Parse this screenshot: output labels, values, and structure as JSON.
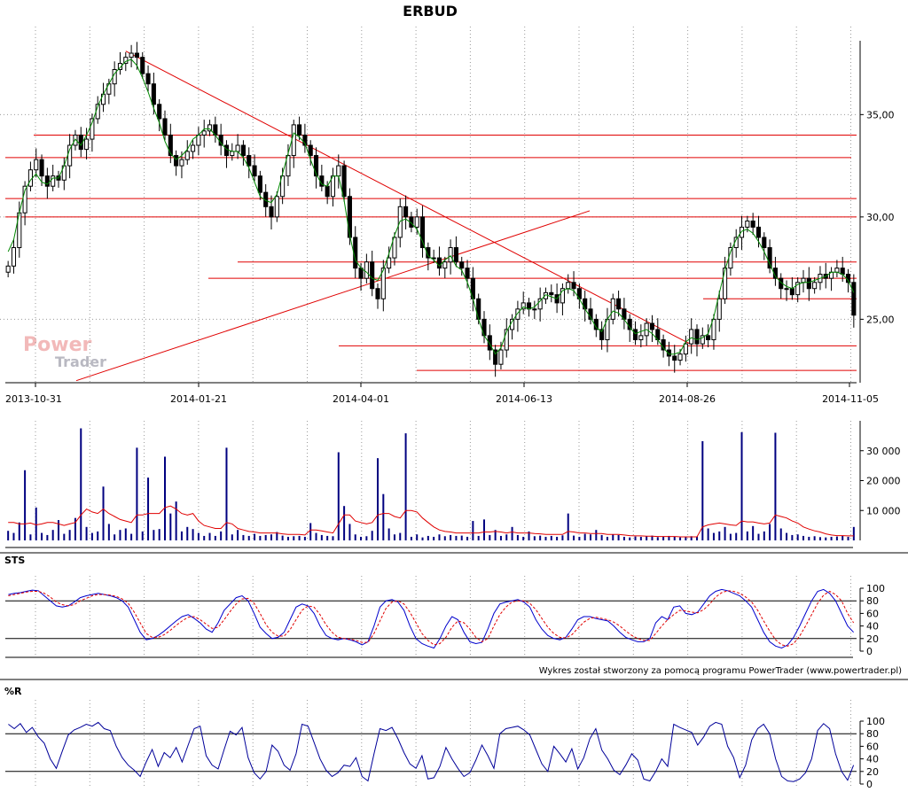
{
  "chart_data": [
    {
      "type": "candlestick",
      "title": "ERBUD",
      "x_tick_labels": [
        "2013-10-31",
        "2014-01-21",
        "2014-04-01",
        "2014-06-13",
        "2014-08-26",
        "2014-11-05"
      ],
      "y_tick_labels": [
        "25,00",
        "30,00",
        "35,00"
      ],
      "y_ticks": [
        25,
        30,
        35
      ],
      "ylim": [
        21.9,
        39.3
      ],
      "grid": true,
      "close_series": [
        27.6,
        28.5,
        30.2,
        31.5,
        32.3,
        32.8,
        32.0,
        31.5,
        32.0,
        31.8,
        32.5,
        33.5,
        34.0,
        33.3,
        33.8,
        34.8,
        35.5,
        36.0,
        36.5,
        37.2,
        37.5,
        37.8,
        38.0,
        37.8,
        37.0,
        36.5,
        35.5,
        34.8,
        34.0,
        33.0,
        32.5,
        32.8,
        33.2,
        33.5,
        34.0,
        34.2,
        34.5,
        34.0,
        33.5,
        33.0,
        33.2,
        33.5,
        33.0,
        32.5,
        32.0,
        31.2,
        30.5,
        30.0,
        31.0,
        32.0,
        33.0,
        34.5,
        34.0,
        33.5,
        33.0,
        32.0,
        31.5,
        31.0,
        32.0,
        32.5,
        31.0,
        29.0,
        27.5,
        27.0,
        27.8,
        26.5,
        26.0,
        27.5,
        28.0,
        29.0,
        30.5,
        30.0,
        29.5,
        30.0,
        28.5,
        28.0,
        28.0,
        27.5,
        27.8,
        28.5,
        27.8,
        27.5,
        27.0,
        26.0,
        25.0,
        24.2,
        23.5,
        22.8,
        23.5,
        24.5,
        25.0,
        25.5,
        25.8,
        25.5,
        25.5,
        26.0,
        26.3,
        26.2,
        25.8,
        26.5,
        26.8,
        26.5,
        26.0,
        25.5,
        25.0,
        24.5,
        24.0,
        25.0,
        26.0,
        25.5,
        25.0,
        24.5,
        24.0,
        24.2,
        24.8,
        24.5,
        24.0,
        23.5,
        23.2,
        23.0,
        23.3,
        23.8,
        24.5,
        23.8,
        24.2,
        24.0,
        25.0,
        26.0,
        27.5,
        28.5,
        29.0,
        29.5,
        29.8,
        29.5,
        29.0,
        28.5,
        27.5,
        27.0,
        26.5,
        26.5,
        26.2,
        26.8,
        27.0,
        26.5,
        26.8,
        27.2,
        27.0,
        27.3,
        27.5,
        27.2,
        26.8,
        25.2
      ],
      "sma_series": [
        28.3,
        28.9,
        30.2,
        31.3,
        31.8,
        32.1,
        31.7,
        31.6,
        31.9,
        31.9,
        32.5,
        33.3,
        33.8,
        33.5,
        34.0,
        34.6,
        35.4,
        36.0,
        36.5,
        37.0,
        37.3,
        37.6,
        37.7,
        37.4,
        36.8,
        36.1,
        35.3,
        34.6,
        33.7,
        33.1,
        32.8,
        33.0,
        33.3,
        33.8,
        34.0,
        34.3,
        34.3,
        34.0,
        33.6,
        33.3,
        33.2,
        33.2,
        32.9,
        32.4,
        31.7,
        31.0,
        30.8,
        30.7,
        31.1,
        32.1,
        33.1,
        34.1,
        33.9,
        33.6,
        32.8,
        32.1,
        31.6,
        31.5,
        32.0,
        32.0,
        30.8,
        29.1,
        27.9,
        27.5,
        27.3,
        27.0,
        26.9,
        27.4,
        28.2,
        29.1,
        29.8,
        29.9,
        29.7,
        29.4,
        28.8,
        28.1,
        27.9,
        27.6,
        27.9,
        28.1,
        27.6,
        27.4,
        26.8,
        26.0,
        25.0,
        24.2,
        23.8,
        23.3,
        23.6,
        24.4,
        24.9,
        25.3,
        25.6,
        25.5,
        25.6,
        25.9,
        26.2,
        26.1,
        26.0,
        26.4,
        26.5,
        26.4,
        26.0,
        25.5,
        25.1,
        24.6,
        24.4,
        25.0,
        25.4,
        25.3,
        25.0,
        24.6,
        24.3,
        24.4,
        24.5,
        24.3,
        24.0,
        23.6,
        23.3,
        23.3,
        23.4,
        23.9,
        24.1,
        24.0,
        24.1,
        24.3,
        25.1,
        26.3,
        27.4,
        28.3,
        28.9,
        29.3,
        29.4,
        29.2,
        28.8,
        28.3,
        27.7,
        27.1,
        26.8,
        26.6,
        26.5,
        26.7,
        26.8,
        26.8,
        26.9,
        27.0,
        27.1,
        27.3,
        27.3,
        27.2,
        26.9,
        26.3
      ],
      "annotations": "red support and resistance lines, a falling trend line and a rising trend line"
    },
    {
      "type": "bar",
      "y_tick_labels": [
        "10 000",
        "20 000",
        "30 000"
      ],
      "y_ticks": [
        10000,
        20000,
        30000
      ],
      "ylim": [
        0,
        40000
      ],
      "series": [
        {
          "values": [
            3200,
            2500,
            6000,
            23500,
            2000,
            11000,
            2500,
            1800,
            3500,
            6800,
            2200,
            3500,
            7500,
            37500,
            4500,
            2500,
            3000,
            18000,
            5500,
            2000,
            3500,
            4000,
            2200,
            31000,
            3000,
            21000,
            3500,
            3800,
            28000,
            9000,
            13000,
            3000,
            4500,
            3800,
            2500,
            1500,
            2500,
            1500,
            3000,
            31000,
            2000,
            3500,
            1800,
            1500,
            2200,
            1500,
            1800,
            2000,
            2800,
            1600,
            1200,
            1400,
            1500,
            1200,
            5800,
            2500,
            1800,
            1500,
            1400,
            29500,
            11500,
            5500,
            2000,
            1200,
            1400,
            3200,
            27500,
            15500,
            4000,
            2000,
            2500,
            35800,
            1200,
            2000,
            1000,
            1500,
            1200,
            2000,
            1400,
            1800,
            1500,
            1600,
            1200,
            6500,
            1500,
            7000,
            1800,
            3500,
            1500,
            2000,
            4500,
            1800,
            1200,
            3000,
            1400,
            1600,
            1200,
            1500,
            1200,
            1700,
            9000,
            1600,
            1200,
            2200,
            2000,
            3500,
            1800,
            1200,
            2000,
            1800,
            1200,
            1000,
            1300,
            1200,
            1400,
            1600,
            1100,
            1200,
            1500,
            1300,
            1000,
            1200,
            1400,
            1300,
            33200,
            4000,
            2500,
            3000,
            4500,
            2200,
            2500,
            36200,
            3000,
            4800,
            2200,
            3000,
            5500,
            36000,
            4000,
            2500,
            1800,
            2000,
            1500,
            1200,
            1400,
            1100,
            1000,
            1200,
            1300,
            1500,
            1200,
            4500
          ],
          "color": "#000080"
        },
        {
          "values": [
            6000,
            6000,
            5500,
            5500,
            5800,
            5200,
            5500,
            6000,
            6000,
            5500,
            5000,
            5500,
            6000,
            8500,
            10500,
            9500,
            9000,
            10500,
            9000,
            8000,
            7000,
            6500,
            6000,
            8500,
            8500,
            9000,
            9000,
            9000,
            11000,
            11500,
            10500,
            9000,
            8500,
            9000,
            6500,
            5000,
            4500,
            4000,
            4000,
            6000,
            5500,
            4000,
            3500,
            3000,
            2800,
            2500,
            2500,
            2500,
            2500,
            2200,
            2000,
            2000,
            2000,
            1800,
            3500,
            3500,
            3200,
            2800,
            2500,
            5500,
            8500,
            8500,
            6500,
            6000,
            5500,
            6000,
            8500,
            9000,
            9000,
            8000,
            7500,
            10000,
            10000,
            9500,
            7500,
            6000,
            4500,
            3500,
            3000,
            2800,
            2500,
            2500,
            2500,
            2500,
            2500,
            2800,
            2800,
            3000,
            2800,
            2500,
            2800,
            2500,
            2500,
            2500,
            2300,
            2200,
            2000,
            2000,
            2000,
            2000,
            3000,
            2800,
            2500,
            2500,
            2300,
            2300,
            2300,
            2000,
            2000,
            2000,
            1800,
            1600,
            1500,
            1500,
            1400,
            1400,
            1300,
            1300,
            1300,
            1300,
            1200,
            1200,
            1200,
            1200,
            4500,
            5200,
            5500,
            5800,
            5500,
            5200,
            5000,
            6500,
            6200,
            6200,
            5800,
            5500,
            5800,
            8500,
            8000,
            7500,
            6500,
            5800,
            4500,
            3800,
            3200,
            2800,
            2200,
            1800,
            1600,
            1600,
            1500,
            1500
          ],
          "color": "#e00000"
        }
      ]
    },
    {
      "type": "line",
      "title": "STS",
      "y_tick_labels": [
        "0",
        "20",
        "40",
        "60",
        "80",
        "100"
      ],
      "y_ticks": [
        0,
        20,
        40,
        60,
        80,
        100
      ],
      "ylim": [
        0,
        100
      ],
      "levels": [
        20,
        80
      ],
      "series": [
        {
          "values": [
            90,
            92,
            93,
            95,
            97,
            96,
            88,
            80,
            72,
            70,
            72,
            78,
            85,
            88,
            90,
            92,
            90,
            88,
            85,
            80,
            70,
            50,
            30,
            18,
            20,
            25,
            32,
            40,
            48,
            55,
            58,
            52,
            45,
            35,
            30,
            45,
            65,
            75,
            85,
            88,
            80,
            60,
            38,
            28,
            20,
            22,
            30,
            50,
            70,
            75,
            72,
            60,
            40,
            25,
            20,
            18,
            20,
            18,
            15,
            10,
            15,
            40,
            70,
            80,
            82,
            78,
            65,
            40,
            20,
            12,
            8,
            5,
            20,
            40,
            55,
            50,
            30,
            15,
            12,
            14,
            35,
            60,
            75,
            78,
            80,
            82,
            78,
            70,
            50,
            35,
            25,
            20,
            18,
            22,
            35,
            50,
            55,
            55,
            52,
            50,
            48,
            40,
            30,
            22,
            18,
            15,
            15,
            20,
            45,
            55,
            50,
            70,
            72,
            60,
            58,
            62,
            75,
            88,
            95,
            98,
            96,
            92,
            88,
            80,
            70,
            50,
            30,
            15,
            8,
            5,
            10,
            22,
            40,
            60,
            80,
            95,
            98,
            92,
            80,
            60,
            40,
            30
          ],
          "color": "#0000cc"
        },
        {
          "values": [
            88,
            90,
            92,
            94,
            95,
            95,
            92,
            86,
            78,
            74,
            72,
            74,
            80,
            84,
            88,
            90,
            90,
            89,
            87,
            83,
            76,
            62,
            45,
            28,
            22,
            22,
            26,
            33,
            41,
            48,
            54,
            55,
            50,
            43,
            36,
            38,
            50,
            63,
            75,
            83,
            84,
            76,
            60,
            42,
            30,
            24,
            24,
            34,
            50,
            65,
            72,
            70,
            58,
            42,
            30,
            22,
            20,
            19,
            17,
            14,
            14,
            28,
            48,
            68,
            78,
            80,
            75,
            62,
            45,
            28,
            17,
            10,
            12,
            22,
            38,
            48,
            45,
            35,
            22,
            15,
            20,
            40,
            58,
            70,
            78,
            80,
            80,
            76,
            66,
            52,
            38,
            28,
            22,
            21,
            26,
            36,
            46,
            52,
            54,
            52,
            50,
            46,
            40,
            32,
            25,
            20,
            17,
            17,
            28,
            40,
            50,
            58,
            65,
            64,
            62,
            61,
            66,
            75,
            86,
            93,
            96,
            95,
            92,
            86,
            78,
            65,
            48,
            32,
            18,
            10,
            8,
            12,
            24,
            40,
            58,
            76,
            89,
            95,
            90,
            80,
            60,
            45
          ],
          "color": "#e00000"
        }
      ]
    },
    {
      "type": "line",
      "title": "%R",
      "y_tick_labels": [
        "0",
        "20",
        "40",
        "60",
        "80",
        "100"
      ],
      "y_ticks": [
        0,
        20,
        40,
        60,
        80,
        100
      ],
      "ylim": [
        0,
        100
      ],
      "levels": [
        20,
        80
      ],
      "series": [
        {
          "values": [
            95,
            88,
            96,
            82,
            90,
            75,
            65,
            40,
            25,
            52,
            78,
            86,
            90,
            95,
            92,
            98,
            88,
            85,
            60,
            42,
            30,
            22,
            12,
            35,
            55,
            28,
            50,
            42,
            58,
            35,
            62,
            88,
            92,
            45,
            30,
            24,
            55,
            84,
            78,
            90,
            42,
            18,
            8,
            20,
            62,
            52,
            30,
            22,
            48,
            95,
            92,
            66,
            40,
            22,
            12,
            18,
            30,
            28,
            42,
            12,
            5,
            48,
            88,
            85,
            90,
            72,
            50,
            32,
            25,
            45,
            8,
            10,
            28,
            58,
            40,
            25,
            12,
            18,
            38,
            62,
            45,
            25,
            80,
            88,
            90,
            92,
            86,
            78,
            55,
            32,
            20,
            60,
            48,
            35,
            56,
            24,
            42,
            72,
            88,
            54,
            40,
            22,
            15,
            30,
            48,
            38,
            8,
            5,
            20,
            40,
            28,
            95,
            90,
            86,
            82,
            62,
            75,
            92,
            98,
            95,
            60,
            42,
            10,
            30,
            70,
            88,
            95,
            80,
            40,
            12,
            5,
            4,
            8,
            18,
            40,
            85,
            96,
            88,
            48,
            20,
            6,
            30
          ],
          "color": "#000099"
        }
      ]
    }
  ],
  "footer": {
    "credit": "Wykres został stworzony za pomocą programu PowerTrader (www.powertrader.pl)"
  },
  "watermark": {
    "word1": "Power",
    "word2": "Trader"
  }
}
